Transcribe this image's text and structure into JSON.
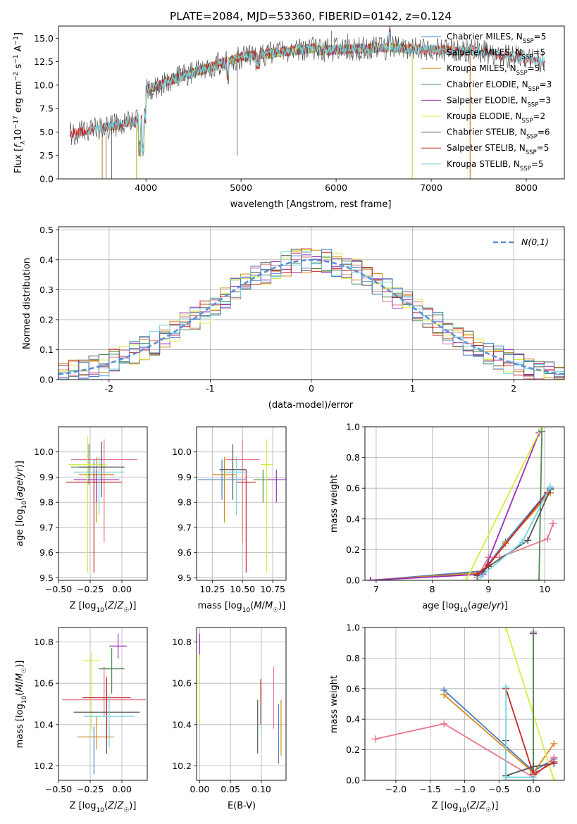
{
  "chart_data": [
    {
      "type": "line",
      "title": "PLATE=2084, MJD=53360, FIBERID=0142, z=0.124",
      "xlabel": "wavelength [Angstrom, rest frame]",
      "ylabel": "Flux [f_λ 10^-17 erg cm^-2 s^-1 A^-1]",
      "xlim": [
        3080,
        8400
      ],
      "ylim": [
        0,
        16.3
      ],
      "xticks": [
        4000,
        5000,
        6000,
        7000,
        8000
      ],
      "yticks": [
        0.0,
        2.5,
        5.0,
        7.5,
        10.0,
        12.5,
        15.0
      ],
      "legend_position": "upper-right",
      "series": [
        {
          "name": "Chabrier MILES, N_SSP=5",
          "color": "#4a7fc1",
          "x_range": [
            3540,
            7410
          ]
        },
        {
          "name": "Salpeter MILES, N_SSP=5",
          "color": "#e8788c",
          "x_range": [
            3540,
            7410
          ]
        },
        {
          "name": "Kroupa MILES, N_SSP=5",
          "color": "#d68a1a",
          "x_range": [
            3540,
            7410
          ]
        },
        {
          "name": "Chabrier ELODIE, N_SSP=3",
          "color": "#4e8a52",
          "x_range": [
            3900,
            6800
          ]
        },
        {
          "name": "Salpeter ELODIE, N_SSP=3",
          "color": "#9a2fb7",
          "x_range": [
            3900,
            6800
          ]
        },
        {
          "name": "Kroupa ELODIE, N_SSP=2",
          "color": "#d7ec3f",
          "x_range": [
            3900,
            6800
          ]
        },
        {
          "name": "Chabrier STELIB, N_SSP=6",
          "color": "#555555",
          "x_range": [
            3200,
            8200
          ]
        },
        {
          "name": "Salpeter STELIB, N_SSP=5",
          "color": "#c62828",
          "x_range": [
            3200,
            8200
          ]
        },
        {
          "name": "Kroupa STELIB, N_SSP=5",
          "color": "#72d6e0",
          "x_range": [
            3380,
            8200
          ]
        }
      ],
      "data_trend": "flux rises from about 5 at 3400 A to about 14 near 5800 A, stays 13-14.5 until 7400 A, then drifts to about 12.5 at 8200 A"
    },
    {
      "type": "step",
      "xlabel": "(data-model)/error",
      "ylabel": "Normed distribution",
      "xlim": [
        -2.5,
        2.5
      ],
      "ylim": [
        0,
        0.51
      ],
      "xticks": [
        -2,
        -1,
        0,
        1,
        2
      ],
      "yticks": [
        0.0,
        0.1,
        0.2,
        0.3,
        0.4,
        0.5
      ],
      "bin_width": 0.1,
      "legend": "N(0,1)",
      "legend_position": "upper-right",
      "reference_curve": {
        "name": "N(0,1)",
        "color": "#5b8fd6",
        "style": "dashed"
      },
      "histogram_colors": [
        "#e8788c",
        "#d68a1a",
        "#4e8a52",
        "#9a2fb7",
        "#d7ec3f",
        "#555555",
        "#c62828",
        "#72d6e0",
        "#4a7fc1"
      ]
    },
    {
      "type": "scatter",
      "xlabel": "Z [log10(Z/Z☉)]",
      "ylabel": "age  [log10(age/yr)]",
      "xlim": [
        -0.5,
        0.2
      ],
      "ylim": [
        9.49,
        10.1
      ],
      "xticks": [
        -0.5,
        -0.25,
        0.0
      ],
      "xtick_labels": [
        "−0.50",
        "−0.25",
        "0.00"
      ],
      "yticks": [
        9.5,
        9.6,
        9.7,
        9.8,
        9.9,
        10.0
      ],
      "points": [
        {
          "x": -0.22,
          "y": 9.89,
          "xerr": 0.13,
          "yerr": [
            0.08,
            0.08
          ],
          "color": "#4a7fc1"
        },
        {
          "x": -0.14,
          "y": 9.97,
          "xerr": 0.26,
          "yerr": [
            0.33,
            0.08
          ],
          "color": "#e8788c"
        },
        {
          "x": -0.2,
          "y": 9.91,
          "xerr": 0.14,
          "yerr": [
            0.19,
            0.07
          ],
          "color": "#d68a1a"
        },
        {
          "x": -0.26,
          "y": 9.94,
          "xerr": 0.14,
          "yerr": [
            0.07,
            0.09
          ],
          "color": "#4e8a52"
        },
        {
          "x": -0.2,
          "y": 9.89,
          "xerr": 0.18,
          "yerr": [
            0.09,
            0.04
          ],
          "color": "#9a2fb7"
        },
        {
          "x": -0.27,
          "y": 9.95,
          "xerr": 0.15,
          "yerr": [
            0.43,
            0.11
          ],
          "color": "#d7ec3f"
        },
        {
          "x": -0.16,
          "y": 9.94,
          "xerr": 0.18,
          "yerr": [
            0.12,
            0.1
          ],
          "color": "#555555"
        },
        {
          "x": -0.22,
          "y": 9.88,
          "xerr": 0.22,
          "yerr": [
            0.36,
            0.05
          ],
          "color": "#c62828"
        },
        {
          "x": -0.18,
          "y": 9.92,
          "xerr": 0.2,
          "yerr": [
            0.17,
            0.06
          ],
          "color": "#72d6e0"
        }
      ]
    },
    {
      "type": "scatter",
      "xlabel": "mass [log10(M/M☉)]",
      "ylabel": "",
      "xlim": [
        10.12,
        10.86
      ],
      "ylim": [
        9.49,
        10.1
      ],
      "xticks": [
        10.25,
        10.5,
        10.75
      ],
      "xtick_labels": [
        "10.25",
        "10.50",
        "10.75"
      ],
      "yticks": [
        9.5,
        9.6,
        9.7,
        9.8,
        9.9,
        10.0
      ],
      "points": [
        {
          "x": 10.33,
          "y": 9.89,
          "xerr": 0.2,
          "yerr": [
            0.08,
            0.08
          ],
          "color": "#4a7fc1"
        },
        {
          "x": 10.5,
          "y": 9.97,
          "xerr": 0.14,
          "yerr": [
            0.33,
            0.08
          ],
          "color": "#e8788c"
        },
        {
          "x": 10.35,
          "y": 9.91,
          "xerr": 0.1,
          "yerr": [
            0.19,
            0.07
          ],
          "color": "#d68a1a"
        },
        {
          "x": 10.67,
          "y": 9.89,
          "xerr": 0.08,
          "yerr": [
            0.09,
            0.04
          ],
          "color": "#4e8a52"
        },
        {
          "x": 10.78,
          "y": 9.89,
          "xerr": 0.08,
          "yerr": [
            0.09,
            0.04
          ],
          "color": "#9a2fb7"
        },
        {
          "x": 10.7,
          "y": 9.95,
          "xerr": 0.05,
          "yerr": [
            0.43,
            0.1
          ],
          "color": "#d7ec3f"
        },
        {
          "x": 10.42,
          "y": 9.93,
          "xerr": 0.11,
          "yerr": [
            0.12,
            0.1
          ],
          "color": "#555555"
        },
        {
          "x": 10.53,
          "y": 9.88,
          "xerr": 0.08,
          "yerr": [
            0.36,
            0.05
          ],
          "color": "#c62828"
        },
        {
          "x": 10.45,
          "y": 9.92,
          "xerr": 0.1,
          "yerr": [
            0.17,
            0.06
          ],
          "color": "#72d6e0"
        }
      ]
    },
    {
      "type": "line",
      "xlabel": "age  [log10(age/yr)]",
      "ylabel": "mass weight",
      "xlim": [
        6.8,
        10.35
      ],
      "ylim": [
        0.0,
        1.0
      ],
      "xticks": [
        7,
        8,
        9,
        10
      ],
      "yticks": [
        0.0,
        0.2,
        0.4,
        0.6,
        0.8,
        1.0
      ],
      "series": [
        {
          "color": "#4a7fc1",
          "x": [
            6.9,
            8.9,
            9.3,
            10.1
          ],
          "y": [
            0.0,
            0.06,
            0.25,
            0.6
          ]
        },
        {
          "color": "#d68a1a",
          "x": [
            6.9,
            8.9,
            9.3,
            10.1
          ],
          "y": [
            0.0,
            0.05,
            0.24,
            0.57
          ]
        },
        {
          "color": "#e8788c",
          "x": [
            8.8,
            9.0,
            9.2,
            10.05,
            10.15
          ],
          "y": [
            0.02,
            0.15,
            0.15,
            0.27,
            0.37
          ]
        },
        {
          "color": "#9a2fb7",
          "x": [
            6.9,
            8.9,
            9.9
          ],
          "y": [
            0.0,
            0.04,
            0.96
          ]
        },
        {
          "color": "#d7ec3f",
          "x": [
            8.6,
            9.95
          ],
          "y": [
            0.0,
            1.0
          ]
        },
        {
          "color": "#4e8a52",
          "x": [
            8.8,
            9.9,
            9.95
          ],
          "y": [
            0.0,
            0.0,
            0.97
          ]
        },
        {
          "color": "#555555",
          "x": [
            8.8,
            9.0,
            9.7,
            10.1
          ],
          "y": [
            0.03,
            0.09,
            0.26,
            0.59
          ]
        },
        {
          "color": "#c62828",
          "x": [
            8.8,
            9.0,
            10.05
          ],
          "y": [
            0.04,
            0.1,
            0.57
          ]
        },
        {
          "color": "#72d6e0",
          "x": [
            8.85,
            9.6,
            10.1
          ],
          "y": [
            0.02,
            0.25,
            0.61
          ]
        }
      ]
    },
    {
      "type": "scatter",
      "xlabel": "Z [log10(Z/Z☉)]",
      "ylabel": "mass [log10(M/M☉)]",
      "xlim": [
        -0.5,
        0.2
      ],
      "ylim": [
        10.13,
        10.87
      ],
      "xticks": [
        -0.5,
        -0.25,
        0.0
      ],
      "xtick_labels": [
        "−0.50",
        "−0.25",
        "0.00"
      ],
      "yticks": [
        10.2,
        10.4,
        10.6,
        10.8
      ],
      "points": [
        {
          "x": -0.22,
          "y": 10.34,
          "xerr": 0.13,
          "yerr": [
            0.18,
            0.05
          ],
          "color": "#4a7fc1"
        },
        {
          "x": -0.14,
          "y": 10.52,
          "xerr": 0.33,
          "yerr": [
            0.08,
            0.16
          ],
          "color": "#e8788c"
        },
        {
          "x": -0.2,
          "y": 10.34,
          "xerr": 0.14,
          "yerr": [
            0.06,
            0.1
          ],
          "color": "#d68a1a"
        },
        {
          "x": -0.08,
          "y": 10.67,
          "xerr": 0.1,
          "yerr": [
            0.12,
            0.1
          ],
          "color": "#4e8a52"
        },
        {
          "x": -0.03,
          "y": 10.78,
          "xerr": 0.07,
          "yerr": [
            0.06,
            0.06
          ],
          "color": "#9a2fb7"
        },
        {
          "x": -0.24,
          "y": 10.71,
          "xerr": 0.07,
          "yerr": [
            0.34,
            0.04
          ],
          "color": "#d7ec3f"
        },
        {
          "x": -0.12,
          "y": 10.46,
          "xerr": 0.26,
          "yerr": [
            0.2,
            0.12
          ],
          "color": "#555555"
        },
        {
          "x": -0.12,
          "y": 10.53,
          "xerr": 0.19,
          "yerr": [
            0.2,
            0.1
          ],
          "color": "#c62828"
        },
        {
          "x": -0.1,
          "y": 10.44,
          "xerr": 0.2,
          "yerr": [
            0.15,
            0.1
          ],
          "color": "#72d6e0"
        }
      ]
    },
    {
      "type": "scatter",
      "xlabel": "E(B-V)",
      "ylabel": "",
      "xlim": [
        -0.005,
        0.14
      ],
      "ylim": [
        10.13,
        10.87
      ],
      "xticks": [
        0.0,
        0.05,
        0.1
      ],
      "xtick_labels": [
        "0.00",
        "0.05",
        "0.10"
      ],
      "yticks": [
        10.2,
        10.4,
        10.6,
        10.8
      ],
      "points": [
        {
          "x": 0.0,
          "y": 10.78,
          "yerr": [
            0.06,
            0.06
          ],
          "color": "#9a2fb7"
        },
        {
          "x": 0.0,
          "y": 10.7,
          "yerr": [
            0.3,
            0.04
          ],
          "color": "#d7ec3f"
        },
        {
          "x": 0.094,
          "y": 10.4,
          "yerr": [
            0.14,
            0.12
          ],
          "color": "#555555"
        },
        {
          "x": 0.099,
          "y": 10.52,
          "yerr": [
            0.12,
            0.1
          ],
          "color": "#c62828"
        },
        {
          "x": 0.1,
          "y": 10.43,
          "yerr": [
            0.08,
            0.08
          ],
          "color": "#72d6e0"
        },
        {
          "x": 0.12,
          "y": 10.53,
          "yerr": [
            0.15,
            0.15
          ],
          "color": "#e8788c"
        },
        {
          "x": 0.128,
          "y": 10.37,
          "yerr": [
            0.16,
            0.13
          ],
          "color": "#4a7fc1"
        },
        {
          "x": 0.132,
          "y": 10.38,
          "yerr": [
            0.13,
            0.14
          ],
          "color": "#d68a1a"
        }
      ]
    },
    {
      "type": "line",
      "xlabel": "Z [log10(Z/Z☉)]",
      "ylabel": "mass weight",
      "xlim": [
        -2.45,
        0.45
      ],
      "ylim": [
        0.0,
        1.0
      ],
      "xticks": [
        -2.0,
        -1.5,
        -1.0,
        -0.5,
        0.0
      ],
      "xtick_labels": [
        "−2.0",
        "−1.5",
        "−1.0",
        "−0.5",
        "0.0"
      ],
      "yticks": [
        0.0,
        0.2,
        0.4,
        0.6,
        0.8,
        1.0
      ],
      "series": [
        {
          "color": "#4a7fc1",
          "x": [
            -1.3,
            0.0,
            0.3
          ],
          "y": [
            0.59,
            0.06,
            0.14
          ]
        },
        {
          "color": "#d68a1a",
          "x": [
            -1.3,
            0.0,
            0.3
          ],
          "y": [
            0.56,
            0.05,
            0.24
          ]
        },
        {
          "color": "#e8788c",
          "x": [
            -2.3,
            -1.3,
            0.0,
            0.3
          ],
          "y": [
            0.27,
            0.37,
            0.02,
            0.15
          ]
        },
        {
          "color": "#9a2fb7",
          "x": [
            0.0,
            0.0,
            0.0
          ],
          "y": [
            0.96,
            0.04,
            0.0
          ]
        },
        {
          "color": "#d7ec3f",
          "x": [
            -0.4,
            0.3
          ],
          "y": [
            1.0,
            0.0
          ]
        },
        {
          "color": "#4e8a52",
          "x": [
            -0.4,
            0.0,
            0.0
          ],
          "y": [
            0.0,
            0.0,
            0.97
          ]
        },
        {
          "color": "#555555",
          "x": [
            -0.4,
            -0.4,
            0.0,
            0.3
          ],
          "y": [
            0.26,
            0.03,
            0.09,
            0.11
          ]
        },
        {
          "color": "#c62828",
          "x": [
            -0.4,
            0.0,
            0.3
          ],
          "y": [
            0.6,
            0.04,
            0.12
          ]
        },
        {
          "color": "#72d6e0",
          "x": [
            -0.4,
            -0.4,
            0.0
          ],
          "y": [
            0.61,
            0.02,
            0.02
          ]
        }
      ]
    }
  ]
}
